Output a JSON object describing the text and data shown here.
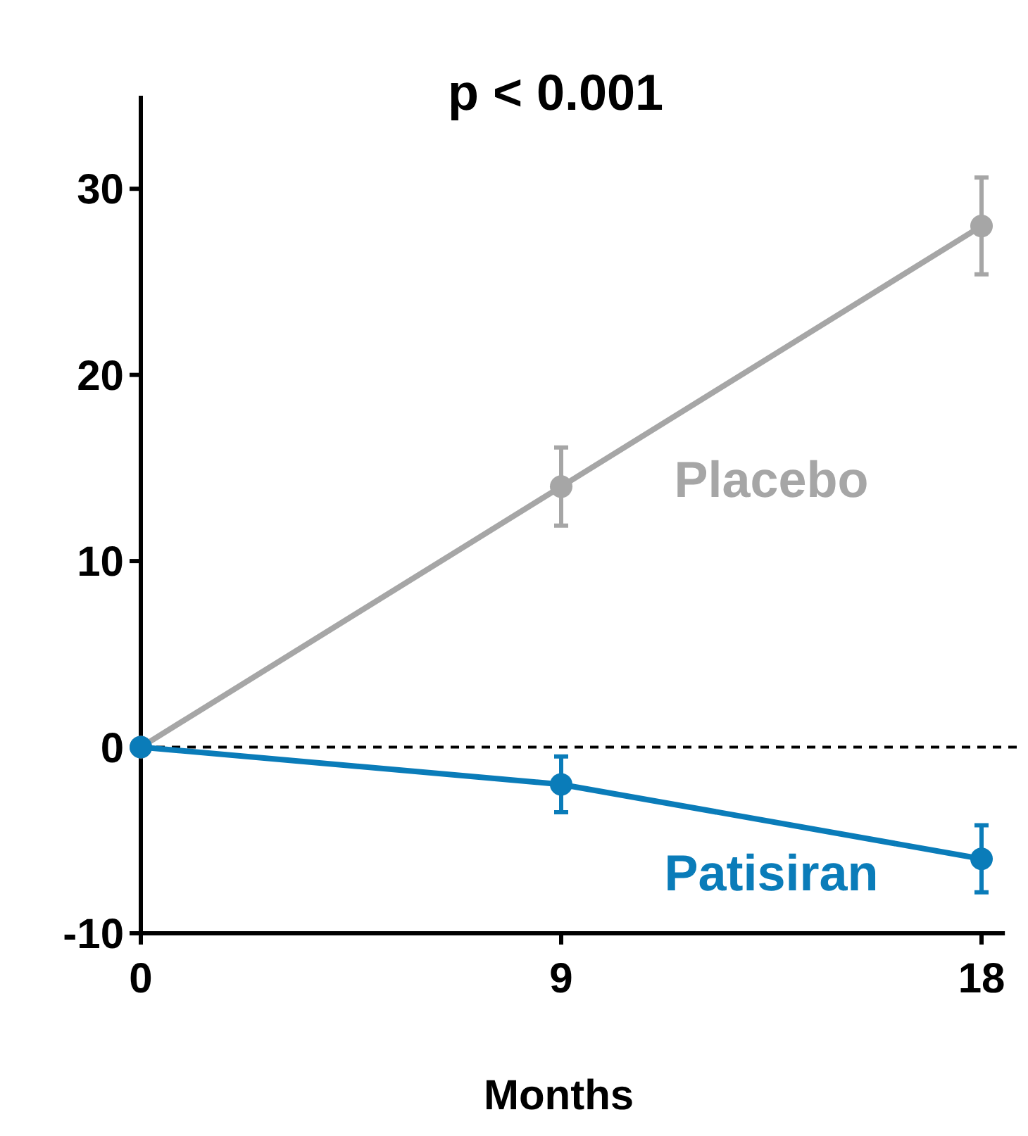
{
  "chart_data": {
    "type": "line",
    "xlabel": "Months",
    "x": [
      0,
      9,
      18
    ],
    "xlim": [
      0,
      18.5
    ],
    "xticks": [
      0,
      9,
      18
    ],
    "ylim": [
      -10,
      35
    ],
    "yticks": [
      -10,
      0,
      10,
      20,
      30
    ],
    "marker": "circle",
    "grid": false,
    "series": [
      {
        "name": "Placebo",
        "color": "#a6a6a6",
        "values": [
          0,
          14,
          28
        ],
        "errors": [
          null,
          2.1,
          2.6
        ]
      },
      {
        "name": "Patisiran",
        "color": "#0a7cb9",
        "values": [
          0,
          -2,
          -6
        ],
        "errors": [
          null,
          1.5,
          1.8
        ]
      }
    ],
    "ref_lines": [
      {
        "axis": "y",
        "value": 0,
        "color": "#000000",
        "line_style": "dashed"
      }
    ],
    "annotations": [
      "p < 0.001"
    ]
  }
}
